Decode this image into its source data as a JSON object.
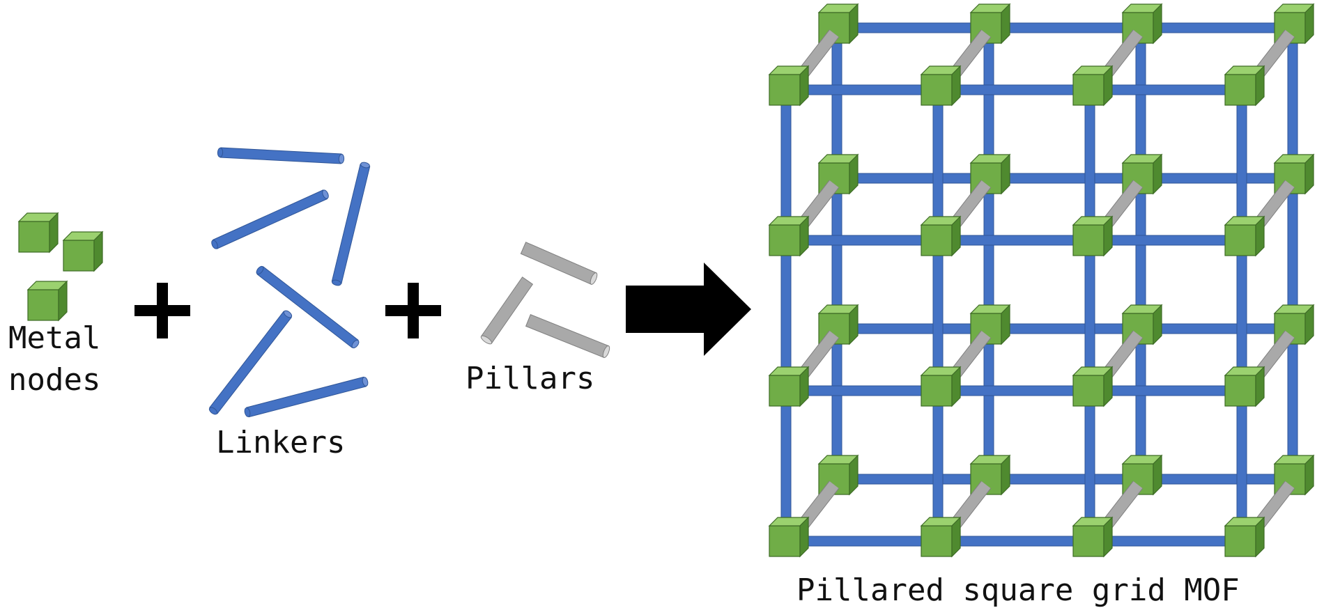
{
  "labels": {
    "metal_line1": "Metal",
    "metal_line2": "nodes",
    "linkers": "Linkers",
    "pillars": "Pillars",
    "mof": "Pillared square grid MOF"
  },
  "colors": {
    "node_front": "#70ad47",
    "node_top": "#9bd16f",
    "node_side": "#4f8a2f",
    "node_stroke": "#3d6b25",
    "linker": "#4472c4",
    "linker_dark": "#2f5597",
    "linker_light": "#6f92d6",
    "pillar": "#a9a9a9",
    "pillar_dark": "#7f7f7f",
    "pillar_light": "#d9d9d9",
    "symbol": "#000000"
  },
  "grid": {
    "columns": 4,
    "rows": 4,
    "layers": 2
  }
}
